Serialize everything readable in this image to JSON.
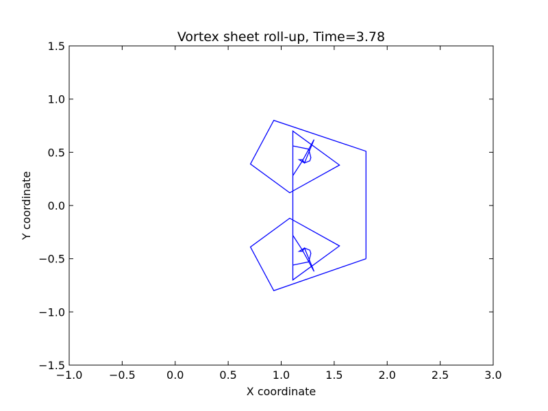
{
  "chart_data": {
    "type": "line",
    "title": "Vortex sheet roll-up, Time=3.78",
    "xlabel": "X coordinate",
    "ylabel": "Y coordinate",
    "xlim": [
      -1.0,
      3.0
    ],
    "ylim": [
      -1.5,
      1.5
    ],
    "xticks": [
      -1.0,
      -0.5,
      0.0,
      0.5,
      1.0,
      1.5,
      2.0,
      2.5,
      3.0
    ],
    "xtick_labels": [
      "−1.0",
      "−0.5",
      "0.0",
      "0.5",
      "1.0",
      "1.5",
      "2.0",
      "2.5",
      "3.0"
    ],
    "yticks": [
      1.5,
      1.0,
      0.5,
      0.0,
      -0.5,
      -1.0,
      -1.5
    ],
    "ytick_labels": [
      "1.5",
      "1.0",
      "0.5",
      "0.0",
      "−0.5",
      "−1.0",
      "−1.5"
    ],
    "grid": false,
    "line_color": "#0000ff",
    "series": [
      {
        "x": [
          1.8,
          0.93,
          0.71,
          1.08,
          1.55,
          1.11,
          1.11,
          1.11,
          1.26,
          1.28,
          1.27,
          1.22,
          1.17,
          1.2,
          1.22,
          1.31,
          1.2,
          1.11,
          1.11,
          1.2,
          1.31,
          1.22,
          1.2,
          1.17,
          1.22,
          1.27,
          1.28,
          1.26,
          1.11,
          1.11,
          1.11,
          1.55,
          1.08,
          0.71,
          0.93,
          1.8,
          1.8
        ],
        "y": [
          -0.5,
          -0.8,
          -0.39,
          -0.12,
          -0.38,
          -0.7,
          -0.24,
          -0.56,
          -0.53,
          -0.45,
          -0.42,
          -0.4,
          -0.43,
          -0.43,
          -0.4,
          -0.62,
          -0.42,
          -0.28,
          0.28,
          0.42,
          0.62,
          0.4,
          0.43,
          0.43,
          0.4,
          0.42,
          0.45,
          0.53,
          0.56,
          0.24,
          0.7,
          0.38,
          0.12,
          0.39,
          0.8,
          0.51,
          -0.5
        ]
      }
    ]
  }
}
